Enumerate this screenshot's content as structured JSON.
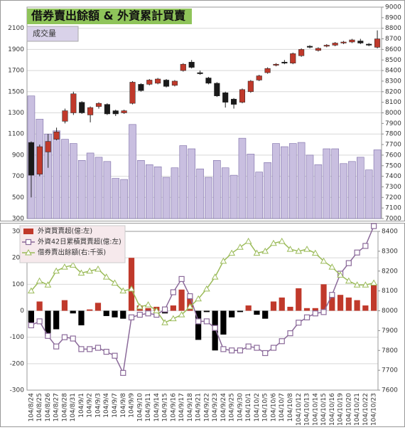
{
  "chart_data": [
    {
      "type": "candlestick",
      "title": "借券賣出餘額 & 外資累計買賣",
      "series": [
        {
          "name": "成交量",
          "type": "bar",
          "color": "#c9bfe0",
          "values": [
            1460,
            1240,
            1100,
            1130,
            1050,
            1010,
            850,
            920,
            880,
            840,
            680,
            670,
            1190,
            850,
            810,
            790,
            690,
            780,
            990,
            960,
            770,
            690,
            850,
            780,
            710,
            1060,
            910,
            740,
            830,
            1010,
            980,
            1010,
            1020,
            900,
            810,
            960,
            960,
            820,
            840,
            880,
            760,
            950
          ]
        }
      ],
      "candles": {
        "axis": "y2",
        "up_color": "#c0392b",
        "down_color": "#1a1a1a",
        "open": [
          7720,
          7420,
          7630,
          7750,
          7920,
          8000,
          8100,
          7980,
          8060,
          8080,
          8020,
          8000,
          8090,
          8270,
          8270,
          8280,
          8310,
          8260,
          8400,
          8480,
          8380,
          8330,
          8280,
          8190,
          8130,
          8100,
          8200,
          8310,
          8380,
          8450,
          8480,
          8470,
          8540,
          8630,
          8590,
          8630,
          8640,
          8660,
          8670,
          8680,
          8650,
          8620
        ],
        "high": [
          7730,
          7700,
          7800,
          7860,
          8040,
          8200,
          8110,
          8060,
          8100,
          8090,
          8030,
          8030,
          8300,
          8280,
          8320,
          8330,
          8320,
          8310,
          8470,
          8500,
          8400,
          8340,
          8290,
          8200,
          8140,
          8230,
          8310,
          8360,
          8430,
          8470,
          8500,
          8570,
          8610,
          8640,
          8620,
          8650,
          8670,
          8680,
          8700,
          8700,
          8660,
          8780
        ],
        "low": [
          7200,
          7400,
          7480,
          7740,
          7900,
          7980,
          7990,
          7910,
          8040,
          7980,
          7970,
          7990,
          8080,
          8200,
          8260,
          8270,
          8240,
          8250,
          8390,
          8420,
          8360,
          8270,
          8150,
          8050,
          8040,
          8090,
          8190,
          8300,
          8370,
          8440,
          8460,
          8460,
          8530,
          8610,
          8580,
          8620,
          8630,
          8650,
          8660,
          8650,
          8630,
          8610
        ],
        "close": [
          7410,
          7680,
          7730,
          7820,
          8020,
          8180,
          8000,
          8050,
          8090,
          7990,
          7990,
          8020,
          8290,
          8210,
          8310,
          8320,
          8250,
          8300,
          8460,
          8430,
          8370,
          8280,
          8160,
          8100,
          8080,
          8220,
          8300,
          8350,
          8420,
          8460,
          8470,
          8560,
          8600,
          8620,
          8610,
          8640,
          8660,
          8670,
          8690,
          8660,
          8640,
          8700
        ]
      },
      "ylim": [
        300,
        2300
      ],
      "yticks": [
        300,
        500,
        700,
        900,
        1100,
        1300,
        1500,
        1700,
        1900,
        2100
      ],
      "y2lim": [
        7000,
        9000
      ],
      "y2ticks": [
        7000,
        7100,
        7200,
        7300,
        7400,
        7500,
        7600,
        7700,
        7800,
        7900,
        8000,
        8100,
        8200,
        8300,
        8400,
        8500,
        8600,
        8700,
        8800,
        8900,
        9000
      ],
      "grid": true
    },
    {
      "type": "bar",
      "categories": [
        "104/8/24",
        "104/8/25",
        "104/8/26",
        "104/8/27",
        "104/8/28",
        "104/8/31",
        "104/9/1",
        "104/9/2",
        "104/9/3",
        "104/9/4",
        "104/9/7",
        "104/9/8",
        "104/9/9",
        "104/9/10",
        "104/9/11",
        "104/9/14",
        "104/9/15",
        "104/9/16",
        "104/9/17",
        "104/9/18",
        "104/9/21",
        "104/9/22",
        "104/9/23",
        "104/9/24",
        "104/9/25",
        "104/9/30",
        "104/10/1",
        "104/10/2",
        "104/10/5",
        "104/10/6",
        "104/10/7",
        "104/10/8",
        "104/10/12",
        "104/10/13",
        "104/10/14",
        "104/10/15",
        "104/10/16",
        "104/10/19",
        "104/10/20",
        "104/10/21",
        "104/10/22",
        "104/10/23"
      ],
      "series": [
        {
          "name": "外資買賣超(億:左)",
          "type": "bar",
          "color": "#c0392b",
          "negative_color": "#000000",
          "values": [
            -45,
            35,
            -95,
            -70,
            40,
            -10,
            -55,
            5,
            30,
            -20,
            -25,
            -30,
            200,
            20,
            10,
            15,
            -10,
            20,
            80,
            50,
            -110,
            -5,
            -150,
            -90,
            -25,
            -5,
            20,
            -15,
            -30,
            35,
            50,
            15,
            85,
            10,
            10,
            100,
            55,
            60,
            50,
            40,
            20,
            100
          ]
        },
        {
          "name": "外資42日累積買賣超(億:左)",
          "type": "line",
          "color": "#8b6a9a",
          "marker": "square",
          "values": [
            -55,
            -40,
            -95,
            -135,
            -100,
            -105,
            -145,
            -145,
            -140,
            -155,
            -170,
            -235,
            -25,
            -15,
            -10,
            -15,
            5,
            70,
            120,
            55,
            -40,
            -40,
            -65,
            -145,
            -150,
            -150,
            -135,
            -140,
            -160,
            -140,
            -115,
            -85,
            -45,
            -25,
            -10,
            -5,
            60,
            140,
            180,
            220,
            245,
            320
          ]
        },
        {
          "name": "借券賣出餘額(右:千張)",
          "type": "line",
          "color": "#9bbb59",
          "marker": "triangle",
          "axis": "y2",
          "values": [
            8100,
            8150,
            8130,
            8200,
            8220,
            8230,
            8190,
            8200,
            8210,
            8170,
            8140,
            8100,
            8110,
            8020,
            8030,
            8000,
            7940,
            7960,
            7980,
            8020,
            8060,
            8110,
            8170,
            8250,
            8290,
            8320,
            8350,
            8290,
            8300,
            8340,
            8350,
            8310,
            8300,
            8310,
            8290,
            8250,
            8220,
            8180,
            8150,
            8130,
            8130,
            8140
          ]
        }
      ],
      "ylim": [
        -300,
        300
      ],
      "yticks": [
        -300,
        -200,
        -100,
        0,
        100,
        200,
        300
      ],
      "y2lim": [
        7600,
        8400
      ],
      "y2ticks": [
        7600,
        7700,
        7800,
        7900,
        8000,
        8100,
        8200,
        8300,
        8400
      ],
      "grid": true
    }
  ]
}
